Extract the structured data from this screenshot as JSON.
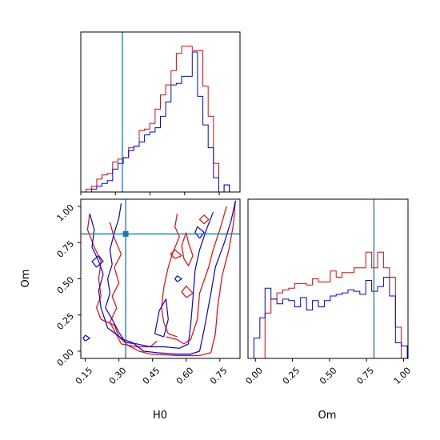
{
  "colors": {
    "red": "#ff0000",
    "blue": "#0000ff",
    "truth": "#1f77b4",
    "axes": "#000000"
  },
  "chart_data": [
    {
      "type": "histogram",
      "panel": "top-left",
      "title": "",
      "xlabel": "",
      "ylabel": "",
      "xlim": [
        0.15,
        0.84
      ],
      "truth_x": 0.33,
      "bin_edges": [
        0.15,
        0.173,
        0.196,
        0.219,
        0.242,
        0.265,
        0.288,
        0.311,
        0.334,
        0.357,
        0.38,
        0.403,
        0.426,
        0.449,
        0.472,
        0.495,
        0.518,
        0.541,
        0.564,
        0.587,
        0.61,
        0.633,
        0.656,
        0.679,
        0.702,
        0.725,
        0.748,
        0.771,
        0.794,
        0.817,
        0.84
      ],
      "series": [
        {
          "color": "red",
          "values": [
            0,
            2,
            4,
            9,
            12,
            13,
            21,
            23,
            24,
            31,
            32,
            43,
            44,
            48,
            58,
            68,
            75,
            85,
            97,
            102,
            102,
            99,
            99,
            74,
            53,
            20,
            0,
            5,
            0,
            0
          ]
        },
        {
          "color": "blue",
          "values": [
            0,
            0,
            2,
            4,
            6,
            8,
            16,
            20,
            24,
            29,
            32,
            35,
            40,
            42,
            45,
            53,
            63,
            75,
            76,
            81,
            81,
            98,
            67,
            47,
            31,
            10,
            0,
            5,
            0,
            0
          ]
        }
      ]
    },
    {
      "type": "histogram",
      "panel": "bottom-right",
      "title": "",
      "xlabel": "Om",
      "xlim": [
        -0.05,
        1.03
      ],
      "x_ticks": [
        "0.00",
        "0.25",
        "0.50",
        "0.75",
        "1.00"
      ],
      "truth_x": 0.8,
      "bin_edges": [
        -0.05,
        -0.01,
        0.03,
        0.065,
        0.105,
        0.145,
        0.185,
        0.225,
        0.265,
        0.305,
        0.345,
        0.385,
        0.425,
        0.465,
        0.505,
        0.545,
        0.585,
        0.625,
        0.665,
        0.705,
        0.745,
        0.785,
        0.825,
        0.865,
        0.905,
        0.945,
        0.985,
        1.025
      ],
      "series": [
        {
          "color": "red",
          "values": [
            0,
            0,
            0,
            29,
            38,
            42,
            44,
            45,
            48,
            48,
            47,
            51,
            49,
            49,
            56,
            52,
            55,
            55,
            58,
            58,
            68,
            58,
            68,
            58,
            52,
            20,
            0
          ]
        },
        {
          "color": "blue",
          "values": [
            0,
            13,
            26,
            45,
            38,
            35,
            38,
            37,
            33,
            39,
            31,
            37,
            33,
            37,
            40,
            41,
            42,
            44,
            43,
            41,
            50,
            43,
            46,
            52,
            40,
            10,
            8
          ]
        }
      ]
    },
    {
      "type": "contour",
      "panel": "bottom-left",
      "title": "",
      "xlabel": "H0",
      "ylabel": "Om",
      "xlim": [
        0.13,
        0.84
      ],
      "ylim": [
        -0.05,
        1.05
      ],
      "x_ticks": [
        "0.15",
        "0.30",
        "0.45",
        "0.60",
        "0.75"
      ],
      "y_ticks": [
        "0.00",
        "0.25",
        "0.50",
        "0.75",
        "1.00"
      ],
      "truth_point": [
        0.33,
        0.81
      ],
      "series": [
        {
          "color": "red",
          "polylines": [
            [
              [
                0.17,
                0.95
              ],
              [
                0.16,
                0.84
              ],
              [
                0.19,
                0.72
              ],
              [
                0.22,
                0.62
              ],
              [
                0.21,
                0.5
              ],
              [
                0.22,
                0.38
              ],
              [
                0.2,
                0.3
              ],
              [
                0.22,
                0.22
              ],
              [
                0.28,
                0.18
              ],
              [
                0.3,
                0.1
              ],
              [
                0.34,
                0.04
              ],
              [
                0.39,
                0.0
              ],
              [
                0.44,
                -0.02
              ],
              [
                0.56,
                -0.03
              ],
              [
                0.66,
                -0.03
              ],
              [
                0.71,
                -0.01
              ],
              [
                0.73,
                0.12
              ],
              [
                0.74,
                0.3
              ],
              [
                0.76,
                0.52
              ],
              [
                0.79,
                0.7
              ],
              [
                0.81,
                0.87
              ],
              [
                0.82,
                1.04
              ]
            ],
            [
              [
                0.26,
                0.89
              ],
              [
                0.28,
                0.78
              ],
              [
                0.31,
                0.67
              ],
              [
                0.28,
                0.58
              ],
              [
                0.3,
                0.47
              ],
              [
                0.27,
                0.38
              ],
              [
                0.29,
                0.3
              ],
              [
                0.26,
                0.2
              ],
              [
                0.28,
                0.14
              ],
              [
                0.31,
                0.05
              ],
              [
                0.38,
                0.03
              ],
              [
                0.44,
                0.03
              ],
              [
                0.47,
                0.07
              ]
            ],
            [
              [
                0.51,
                0.1
              ],
              [
                0.56,
                0.08
              ],
              [
                0.59,
                0.05
              ],
              [
                0.62,
                0.08
              ],
              [
                0.65,
                0.22
              ],
              [
                0.66,
                0.4
              ],
              [
                0.7,
                0.58
              ],
              [
                0.72,
                0.7
              ],
              [
                0.75,
                0.84
              ],
              [
                0.78,
                1.0
              ]
            ],
            [
              [
                0.56,
                0.95
              ],
              [
                0.55,
                0.86
              ],
              [
                0.57,
                0.79
              ],
              [
                0.54,
                0.68
              ],
              [
                0.52,
                0.58
              ],
              [
                0.5,
                0.44
              ],
              [
                0.49,
                0.3
              ],
              [
                0.5,
                0.2
              ],
              [
                0.52,
                0.12
              ],
              [
                0.56,
                0.1
              ]
            ],
            [
              [
                0.6,
                0.82
              ],
              [
                0.58,
                0.73
              ],
              [
                0.59,
                0.64
              ],
              [
                0.61,
                0.59
              ],
              [
                0.63,
                0.66
              ],
              [
                0.61,
                0.75
              ],
              [
                0.6,
                0.82
              ]
            ],
            [
              [
                0.55,
                0.64
              ],
              [
                0.58,
                0.66
              ],
              [
                0.55,
                0.7
              ],
              [
                0.53,
                0.67
              ],
              [
                0.55,
                0.64
              ]
            ],
            [
              [
                0.6,
                0.37
              ],
              [
                0.63,
                0.4
              ],
              [
                0.6,
                0.45
              ],
              [
                0.58,
                0.41
              ],
              [
                0.6,
                0.37
              ]
            ],
            [
              [
                0.68,
                0.88
              ],
              [
                0.7,
                0.91
              ],
              [
                0.68,
                0.94
              ],
              [
                0.66,
                0.91
              ],
              [
                0.68,
                0.88
              ]
            ]
          ]
        },
        {
          "color": "blue",
          "polylines": [
            [
              [
                0.17,
                0.95
              ],
              [
                0.19,
                0.84
              ],
              [
                0.18,
                0.72
              ],
              [
                0.21,
                0.62
              ],
              [
                0.23,
                0.53
              ],
              [
                0.21,
                0.42
              ],
              [
                0.22,
                0.3
              ],
              [
                0.25,
                0.16
              ],
              [
                0.32,
                0.08
              ],
              [
                0.36,
                0.06
              ],
              [
                0.41,
                0.0
              ],
              [
                0.47,
                -0.01
              ],
              [
                0.55,
                -0.02
              ],
              [
                0.62,
                -0.02
              ],
              [
                0.66,
                0.0
              ],
              [
                0.68,
                0.15
              ],
              [
                0.71,
                0.4
              ],
              [
                0.73,
                0.58
              ],
              [
                0.77,
                0.75
              ],
              [
                0.8,
                0.9
              ],
              [
                0.82,
                1.04
              ]
            ],
            [
              [
                0.31,
                1.02
              ],
              [
                0.3,
                0.92
              ],
              [
                0.28,
                0.82
              ],
              [
                0.26,
                0.7
              ],
              [
                0.27,
                0.6
              ],
              [
                0.25,
                0.5
              ],
              [
                0.26,
                0.4
              ],
              [
                0.24,
                0.3
              ],
              [
                0.27,
                0.22
              ],
              [
                0.3,
                0.13
              ],
              [
                0.33,
                0.06
              ],
              [
                0.38,
                0.05
              ],
              [
                0.44,
                0.03
              ],
              [
                0.5,
                0.03
              ],
              [
                0.57,
                0.02
              ],
              [
                0.61,
                0.05
              ],
              [
                0.62,
                0.18
              ],
              [
                0.63,
                0.36
              ],
              [
                0.64,
                0.56
              ],
              [
                0.66,
                0.7
              ],
              [
                0.69,
                0.84
              ],
              [
                0.72,
                0.96
              ]
            ],
            [
              [
                0.2,
                0.58
              ],
              [
                0.23,
                0.62
              ],
              [
                0.21,
                0.66
              ],
              [
                0.18,
                0.62
              ],
              [
                0.2,
                0.58
              ]
            ],
            [
              [
                0.66,
                0.78
              ],
              [
                0.68,
                0.82
              ],
              [
                0.65,
                0.86
              ],
              [
                0.64,
                0.82
              ],
              [
                0.66,
                0.78
              ]
            ],
            [
              [
                0.46,
                0.12
              ],
              [
                0.48,
                0.28
              ],
              [
                0.51,
                0.36
              ],
              [
                0.52,
                0.22
              ],
              [
                0.5,
                0.1
              ],
              [
                0.46,
                0.12
              ]
            ],
            [
              [
                0.56,
                0.48
              ],
              [
                0.58,
                0.5
              ],
              [
                0.56,
                0.52
              ],
              [
                0.55,
                0.5
              ],
              [
                0.56,
                0.48
              ]
            ],
            [
              [
                0.15,
                0.07
              ],
              [
                0.17,
                0.09
              ],
              [
                0.15,
                0.11
              ],
              [
                0.14,
                0.09
              ],
              [
                0.15,
                0.07
              ]
            ]
          ]
        }
      ]
    }
  ]
}
